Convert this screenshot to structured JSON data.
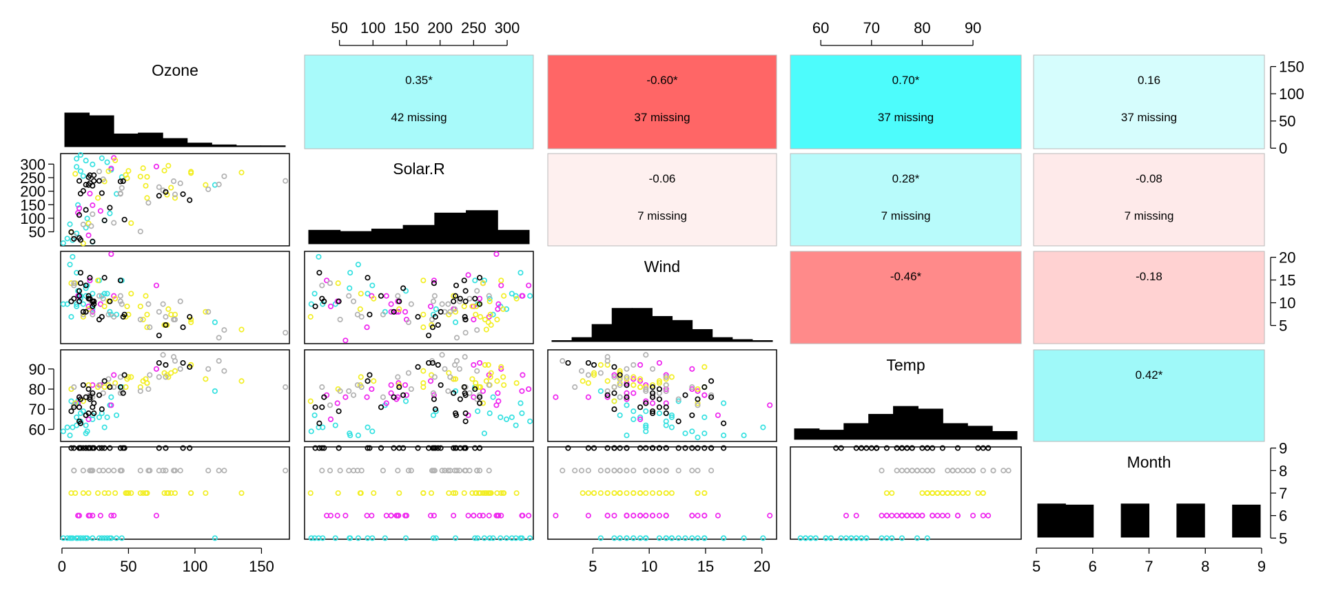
{
  "chart_data": {
    "type": "scatter",
    "variables": [
      "Ozone",
      "Solar.R",
      "Wind",
      "Temp",
      "Month"
    ],
    "ranges": {
      "Ozone": [
        -1,
        171
      ],
      "Solar.R": [
        -2,
        339
      ],
      "Wind": [
        1.0,
        21.3
      ],
      "Temp": [
        54,
        99.5
      ],
      "Month": [
        4.95,
        9.05
      ]
    },
    "ticks": {
      "Ozone": [
        "0",
        "50",
        "100",
        "150"
      ],
      "Solar.R": [
        "50",
        "100",
        "150",
        "200",
        "250",
        "300"
      ],
      "Wind": [
        "5",
        "10",
        "15",
        "20"
      ],
      "Temp": [
        "60",
        "70",
        "80",
        "90"
      ],
      "Month": [
        "5",
        "6",
        "7",
        "8",
        "9"
      ],
      "Ozone_hist": [
        "0",
        "50",
        "100",
        "150"
      ],
      "Solar_left": [
        "50",
        "100",
        "150",
        "200",
        "250",
        "300"
      ],
      "Wind_right": [
        "5",
        "10",
        "15",
        "20"
      ],
      "Temp_left": [
        "60",
        "70",
        "80",
        "90"
      ]
    },
    "month_colors": {
      "5": "#33e0e0",
      "6": "#ee22ee",
      "7": "#f2ee22",
      "8": "#b0b0b0",
      "9": "#000000"
    },
    "correlations": [
      {
        "row": 0,
        "col": 1,
        "value": "0.35*",
        "missing": "42 missing",
        "color": "#a8fafa"
      },
      {
        "row": 0,
        "col": 2,
        "value": "-0.60*",
        "missing": "37 missing",
        "color": "#ff6666"
      },
      {
        "row": 0,
        "col": 3,
        "value": "0.70*",
        "missing": "37 missing",
        "color": "#4dfcfc"
      },
      {
        "row": 0,
        "col": 4,
        "value": "0.16",
        "missing": "37 missing",
        "color": "#d6fdfd"
      },
      {
        "row": 1,
        "col": 2,
        "value": "-0.06",
        "missing": "7 missing",
        "color": "#fef0ef"
      },
      {
        "row": 1,
        "col": 3,
        "value": "0.28*",
        "missing": "7 missing",
        "color": "#b8fbfb"
      },
      {
        "row": 1,
        "col": 4,
        "value": "-0.08",
        "missing": "7 missing",
        "color": "#feeaea"
      },
      {
        "row": 2,
        "col": 3,
        "value": "-0.46*",
        "missing": "",
        "color": "#ff8a8a"
      },
      {
        "row": 2,
        "col": 4,
        "value": "-0.18",
        "missing": "",
        "color": "#ffd2d2"
      },
      {
        "row": 3,
        "col": 4,
        "value": "0.42*",
        "missing": "",
        "color": "#9ff9f9"
      }
    ],
    "histograms": {
      "Ozone": {
        "breaks": [
          0,
          20,
          40,
          60,
          80,
          100,
          120,
          140,
          160,
          180
        ],
        "counts": [
          37,
          34,
          14,
          15,
          9,
          4,
          2,
          1,
          1
        ]
      },
      "Solar.R": {
        "breaks": [
          0,
          50,
          100,
          150,
          200,
          250,
          300,
          350
        ],
        "counts": [
          11,
          10,
          12,
          15,
          25,
          27,
          11
        ]
      },
      "Wind": {
        "breaks": [
          0,
          2,
          4,
          6,
          8,
          10,
          12,
          14,
          16,
          18,
          20,
          22
        ],
        "counts": [
          1,
          4,
          17,
          33,
          33,
          25,
          21,
          12,
          4,
          2,
          1
        ]
      },
      "Temp": {
        "breaks": [
          55,
          60,
          65,
          70,
          75,
          80,
          85,
          90,
          95,
          100
        ],
        "counts": [
          8,
          7,
          12,
          19,
          25,
          23,
          12,
          10,
          6
        ]
      },
      "Month": {
        "breaks": [
          5,
          5.5,
          6,
          6.5,
          7,
          7.5,
          8,
          8.5,
          9
        ],
        "counts": [
          31,
          30,
          0,
          31,
          0,
          31,
          0,
          30
        ]
      }
    },
    "observations": {
      "columns": [
        "Ozone",
        "Solar.R",
        "Wind",
        "Temp",
        "Month"
      ],
      "rows": [
        [
          41,
          190,
          7.4,
          67,
          5
        ],
        [
          36,
          118,
          8,
          72,
          5
        ],
        [
          12,
          149,
          12.6,
          74,
          5
        ],
        [
          18,
          313,
          11.5,
          62,
          5
        ],
        [
          null,
          null,
          14.3,
          56,
          5
        ],
        [
          28,
          null,
          14.9,
          66,
          5
        ],
        [
          23,
          299,
          8.6,
          65,
          5
        ],
        [
          19,
          99,
          13.8,
          59,
          5
        ],
        [
          8,
          19,
          20.1,
          61,
          5
        ],
        [
          null,
          194,
          8.6,
          69,
          5
        ],
        [
          7,
          null,
          6.9,
          74,
          5
        ],
        [
          16,
          256,
          9.7,
          69,
          5
        ],
        [
          11,
          290,
          9.2,
          66,
          5
        ],
        [
          14,
          274,
          10.9,
          68,
          5
        ],
        [
          18,
          65,
          13.2,
          58,
          5
        ],
        [
          14,
          334,
          11.5,
          64,
          5
        ],
        [
          34,
          307,
          12,
          66,
          5
        ],
        [
          6,
          78,
          18.4,
          57,
          5
        ],
        [
          30,
          322,
          11.5,
          68,
          5
        ],
        [
          11,
          44,
          9.7,
          62,
          5
        ],
        [
          1,
          8,
          9.7,
          59,
          5
        ],
        [
          11,
          320,
          16.6,
          73,
          5
        ],
        [
          4,
          25,
          9.7,
          61,
          5
        ],
        [
          32,
          92,
          12,
          61,
          5
        ],
        [
          null,
          66,
          16.6,
          57,
          5
        ],
        [
          null,
          266,
          14.9,
          58,
          5
        ],
        [
          null,
          null,
          8,
          57,
          5
        ],
        [
          23,
          13,
          12,
          67,
          5
        ],
        [
          45,
          252,
          14.9,
          81,
          5
        ],
        [
          115,
          223,
          5.7,
          79,
          5
        ],
        [
          37,
          279,
          7.4,
          76,
          5
        ],
        [
          null,
          286,
          8.6,
          78,
          6
        ],
        [
          null,
          287,
          9.7,
          74,
          6
        ],
        [
          null,
          242,
          16.1,
          67,
          6
        ],
        [
          null,
          186,
          9.2,
          84,
          6
        ],
        [
          null,
          220,
          8.6,
          85,
          6
        ],
        [
          null,
          264,
          14.3,
          79,
          6
        ],
        [
          29,
          127,
          9.7,
          82,
          6
        ],
        [
          null,
          273,
          6.9,
          87,
          6
        ],
        [
          71,
          291,
          13.8,
          90,
          6
        ],
        [
          39,
          323,
          11.5,
          87,
          6
        ],
        [
          null,
          259,
          10.9,
          93,
          6
        ],
        [
          null,
          250,
          9.2,
          92,
          6
        ],
        [
          23,
          148,
          8,
          82,
          6
        ],
        [
          null,
          332,
          13.8,
          80,
          6
        ],
        [
          null,
          322,
          11.5,
          79,
          6
        ],
        [
          21,
          191,
          14.9,
          77,
          6
        ],
        [
          37,
          284,
          20.7,
          72,
          6
        ],
        [
          20,
          37,
          9.2,
          65,
          6
        ],
        [
          12,
          120,
          11.5,
          73,
          6
        ],
        [
          13,
          137,
          10.3,
          76,
          6
        ],
        [
          null,
          150,
          6.3,
          77,
          6
        ],
        [
          null,
          59,
          1.7,
          76,
          6
        ],
        [
          null,
          91,
          4.6,
          76,
          6
        ],
        [
          null,
          250,
          6.3,
          76,
          6
        ],
        [
          null,
          135,
          8,
          75,
          6
        ],
        [
          null,
          127,
          8,
          78,
          6
        ],
        [
          null,
          47,
          10.3,
          73,
          6
        ],
        [
          null,
          98,
          11.5,
          80,
          6
        ],
        [
          null,
          31,
          14.9,
          77,
          6
        ],
        [
          null,
          138,
          8,
          83,
          6
        ],
        [
          135,
          269,
          4.1,
          84,
          7
        ],
        [
          49,
          248,
          9.2,
          85,
          7
        ],
        [
          32,
          236,
          9.2,
          81,
          7
        ],
        [
          null,
          101,
          10.9,
          84,
          7
        ],
        [
          64,
          175,
          4.6,
          83,
          7
        ],
        [
          40,
          314,
          10.9,
          83,
          7
        ],
        [
          77,
          276,
          5.1,
          88,
          7
        ],
        [
          97,
          267,
          6.3,
          92,
          7
        ],
        [
          97,
          272,
          5.7,
          92,
          7
        ],
        [
          85,
          175,
          7.4,
          89,
          7
        ],
        [
          null,
          139,
          8.6,
          82,
          7
        ],
        [
          10,
          264,
          14.3,
          73,
          7
        ],
        [
          27,
          175,
          14.9,
          81,
          7
        ],
        [
          null,
          291,
          14.9,
          91,
          7
        ],
        [
          7,
          48,
          14.3,
          80,
          7
        ],
        [
          48,
          260,
          6.9,
          81,
          7
        ],
        [
          35,
          274,
          10.3,
          82,
          7
        ],
        [
          61,
          285,
          6.3,
          84,
          7
        ],
        [
          79,
          187,
          5.1,
          87,
          7
        ],
        [
          63,
          220,
          11.5,
          85,
          7
        ],
        [
          16,
          7,
          6.9,
          74,
          7
        ],
        [
          null,
          258,
          9.7,
          81,
          7
        ],
        [
          null,
          295,
          11.5,
          82,
          7
        ],
        [
          80,
          294,
          8.6,
          86,
          7
        ],
        [
          108,
          223,
          8,
          85,
          7
        ],
        [
          20,
          81,
          8.6,
          82,
          7
        ],
        [
          52,
          82,
          12,
          86,
          7
        ],
        [
          82,
          213,
          7.4,
          88,
          7
        ],
        [
          50,
          275,
          7.4,
          86,
          7
        ],
        [
          64,
          253,
          7.4,
          83,
          7
        ],
        [
          59,
          254,
          9.2,
          81,
          7
        ],
        [
          39,
          83,
          6.9,
          81,
          8
        ],
        [
          9,
          24,
          13.8,
          81,
          8
        ],
        [
          16,
          77,
          7.4,
          82,
          8
        ],
        [
          78,
          null,
          6.9,
          86,
          8
        ],
        [
          35,
          null,
          7.4,
          85,
          8
        ],
        [
          66,
          null,
          4.6,
          87,
          8
        ],
        [
          122,
          255,
          4,
          89,
          8
        ],
        [
          89,
          229,
          10.3,
          90,
          8
        ],
        [
          110,
          207,
          8,
          90,
          8
        ],
        [
          null,
          222,
          8.6,
          92,
          8
        ],
        [
          null,
          137,
          11.5,
          86,
          8
        ],
        [
          44,
          192,
          11.5,
          86,
          8
        ],
        [
          28,
          273,
          11.5,
          82,
          8
        ],
        [
          65,
          157,
          9.7,
          80,
          8
        ],
        [
          null,
          64,
          11.5,
          79,
          8
        ],
        [
          22,
          71,
          10.3,
          77,
          8
        ],
        [
          59,
          51,
          6.3,
          79,
          8
        ],
        [
          23,
          115,
          7.4,
          76,
          8
        ],
        [
          31,
          244,
          10.9,
          78,
          8
        ],
        [
          44,
          190,
          10.3,
          78,
          8
        ],
        [
          21,
          259,
          15.5,
          77,
          8
        ],
        [
          9,
          36,
          14.3,
          72,
          8
        ],
        [
          null,
          255,
          12.6,
          75,
          8
        ],
        [
          45,
          212,
          9.7,
          79,
          8
        ],
        [
          168,
          238,
          3.4,
          81,
          8
        ],
        [
          73,
          215,
          8,
          86,
          8
        ],
        [
          null,
          153,
          5.7,
          88,
          8
        ],
        [
          76,
          203,
          9.7,
          97,
          8
        ],
        [
          118,
          225,
          2.3,
          94,
          8
        ],
        [
          84,
          237,
          6.3,
          96,
          8
        ],
        [
          85,
          188,
          6.3,
          94,
          8
        ],
        [
          96,
          167,
          6.9,
          91,
          9
        ],
        [
          78,
          197,
          5.1,
          92,
          9
        ],
        [
          73,
          183,
          2.8,
          93,
          9
        ],
        [
          91,
          189,
          4.6,
          93,
          9
        ],
        [
          47,
          95,
          7.4,
          87,
          9
        ],
        [
          32,
          92,
          15.5,
          84,
          9
        ],
        [
          20,
          252,
          10.9,
          80,
          9
        ],
        [
          23,
          220,
          10.3,
          78,
          9
        ],
        [
          21,
          230,
          10.9,
          75,
          9
        ],
        [
          24,
          259,
          9.7,
          73,
          9
        ],
        [
          44,
          236,
          14.9,
          81,
          9
        ],
        [
          21,
          259,
          15.5,
          76,
          9
        ],
        [
          28,
          238,
          6.3,
          77,
          9
        ],
        [
          9,
          24,
          10.9,
          71,
          9
        ],
        [
          13,
          112,
          11.5,
          71,
          9
        ],
        [
          46,
          237,
          6.9,
          78,
          9
        ],
        [
          18,
          224,
          13.8,
          67,
          9
        ],
        [
          13,
          27,
          10.3,
          76,
          9
        ],
        [
          24,
          238,
          10.3,
          68,
          9
        ],
        [
          16,
          201,
          8,
          82,
          9
        ],
        [
          13,
          238,
          12.6,
          64,
          9
        ],
        [
          23,
          14,
          9.2,
          71,
          9
        ],
        [
          36,
          139,
          10.3,
          81,
          9
        ],
        [
          7,
          49,
          10.3,
          69,
          9
        ],
        [
          14,
          20,
          16.6,
          63,
          9
        ],
        [
          30,
          193,
          6.9,
          70,
          9
        ],
        [
          null,
          145,
          13.2,
          77,
          9
        ],
        [
          14,
          191,
          14.3,
          75,
          9
        ],
        [
          18,
          131,
          8,
          76,
          9
        ],
        [
          20,
          223,
          11.5,
          68,
          9
        ]
      ]
    }
  }
}
